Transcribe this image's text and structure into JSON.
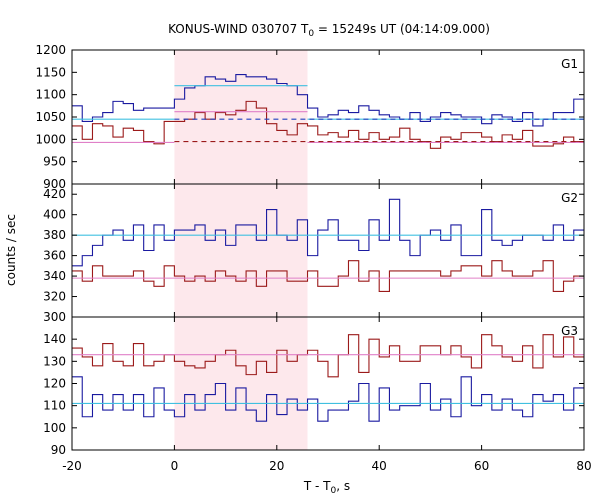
{
  "chart_data": {
    "type": "line",
    "style": "step",
    "title": {
      "main": "KONUS-WIND 030707 T",
      "sub": "0",
      "rest": " = 15249s UT (04:14:09.000)"
    },
    "xlabel": {
      "main": "T - T",
      "sub": "0",
      "rest": ", s"
    },
    "ylabel": "counts / sec",
    "xlim": [
      -20,
      80
    ],
    "x_ticks": [
      "-20",
      "0",
      "20",
      "40",
      "60",
      "80"
    ],
    "highlight_interval": {
      "x": [
        0,
        26
      ],
      "color": "#fde8ec"
    },
    "x_edges": [
      -20,
      -18,
      -16,
      -14,
      -12,
      -10,
      -8,
      -6,
      -4,
      -2,
      0,
      2,
      4,
      6,
      8,
      10,
      12,
      14,
      16,
      18,
      20,
      22,
      24,
      26,
      28,
      30,
      32,
      34,
      36,
      38,
      40,
      42,
      44,
      46,
      48,
      50,
      52,
      54,
      56,
      58,
      60,
      62,
      64,
      66,
      68,
      70,
      72,
      74,
      76,
      78,
      80
    ],
    "panels": [
      {
        "label": "G1",
        "ylim": [
          900,
          1200
        ],
        "y_ticks": [
          "900",
          "950",
          "1000",
          "1050",
          "1100",
          "1150",
          "1200"
        ],
        "series": [
          {
            "color": "#1a1aa0",
            "values": [
              1075,
              1040,
              1050,
              1060,
              1085,
              1080,
              1065,
              1070,
              1070,
              1070,
              1090,
              1115,
              1120,
              1140,
              1135,
              1130,
              1145,
              1140,
              1140,
              1135,
              1125,
              1120,
              1100,
              1070,
              1050,
              1055,
              1065,
              1060,
              1075,
              1065,
              1055,
              1050,
              1045,
              1060,
              1040,
              1050,
              1060,
              1055,
              1050,
              1050,
              1035,
              1055,
              1050,
              1040,
              1060,
              1030,
              1045,
              1060,
              1060,
              1090
            ]
          },
          {
            "color": "#9b1a1a",
            "values": [
              1030,
              1000,
              1035,
              1030,
              1005,
              1025,
              1020,
              995,
              990,
              1040,
              1040,
              1045,
              1060,
              1045,
              1060,
              1055,
              1065,
              1085,
              1070,
              1035,
              1020,
              1010,
              1035,
              1030,
              1010,
              1015,
              1005,
              1020,
              1000,
              1015,
              1000,
              1005,
              1025,
              1000,
              995,
              980,
              1005,
              1000,
              1015,
              1015,
              1005,
              995,
              1010,
              1000,
              1020,
              985,
              985,
              990,
              1005,
              995
            ]
          }
        ],
        "ref_lines": [
          {
            "color": "#40c0e0",
            "style": "solid",
            "y": 1045,
            "x": [
              -20,
              0
            ]
          },
          {
            "color": "#40c0e0",
            "style": "solid",
            "y": 1120,
            "x": [
              0,
              26
            ]
          },
          {
            "color": "#40c0e0",
            "style": "solid",
            "y": 1045,
            "x": [
              26,
              80
            ]
          },
          {
            "color": "#2040c0",
            "style": "dashed",
            "y": 1045,
            "x": [
              0,
              80
            ]
          },
          {
            "color": "#e080c8",
            "style": "solid",
            "y": 993,
            "x": [
              -20,
              0
            ]
          },
          {
            "color": "#e080c8",
            "style": "solid",
            "y": 1062,
            "x": [
              0,
              26
            ]
          },
          {
            "color": "#e080c8",
            "style": "solid",
            "y": 993,
            "x": [
              26,
              80
            ]
          },
          {
            "color": "#9b1a1a",
            "style": "dashed",
            "y": 995,
            "x": [
              0,
              80
            ]
          }
        ]
      },
      {
        "label": "G2",
        "ylim": [
          300,
          430
        ],
        "y_ticks": [
          "300",
          "320",
          "340",
          "360",
          "380",
          "400",
          "420"
        ],
        "series": [
          {
            "color": "#1a1aa0",
            "values": [
              350,
              360,
              370,
              380,
              385,
              375,
              390,
              365,
              390,
              375,
              385,
              385,
              390,
              375,
              385,
              370,
              390,
              390,
              375,
              405,
              380,
              375,
              395,
              360,
              385,
              395,
              375,
              375,
              365,
              395,
              375,
              415,
              375,
              360,
              380,
              385,
              375,
              390,
              360,
              360,
              405,
              375,
              370,
              375,
              380,
              380,
              375,
              390,
              375,
              385
            ]
          },
          {
            "color": "#9b1a1a",
            "values": [
              345,
              335,
              350,
              340,
              340,
              340,
              345,
              335,
              330,
              350,
              340,
              335,
              340,
              335,
              345,
              340,
              335,
              345,
              330,
              345,
              345,
              335,
              335,
              345,
              330,
              330,
              340,
              355,
              335,
              345,
              325,
              345,
              345,
              345,
              345,
              345,
              340,
              345,
              350,
              350,
              340,
              355,
              345,
              340,
              340,
              345,
              355,
              325,
              335,
              340
            ]
          }
        ],
        "ref_lines": [
          {
            "color": "#40c0e0",
            "style": "solid",
            "y": 380,
            "x": [
              -20,
              80
            ]
          },
          {
            "color": "#e080c8",
            "style": "solid",
            "y": 338,
            "x": [
              -20,
              80
            ]
          }
        ]
      },
      {
        "label": "G3",
        "ylim": [
          90,
          150
        ],
        "y_ticks": [
          "90",
          "100",
          "110",
          "120",
          "130",
          "140"
        ],
        "series": [
          {
            "color": "#1a1aa0",
            "values": [
              123,
              105,
              115,
              108,
              115,
              108,
              115,
              105,
              118,
              108,
              105,
              115,
              108,
              115,
              120,
              108,
              118,
              108,
              103,
              115,
              106,
              113,
              108,
              113,
              103,
              108,
              108,
              112,
              120,
              103,
              118,
              108,
              110,
              110,
              120,
              108,
              113,
              105,
              123,
              110,
              115,
              108,
              113,
              108,
              105,
              115,
              112,
              115,
              108,
              118
            ]
          },
          {
            "color": "#9b1a1a",
            "values": [
              136,
              132,
              128,
              138,
              130,
              128,
              138,
              128,
              130,
              133,
              130,
              128,
              127,
              130,
              133,
              135,
              128,
              124,
              130,
              125,
              135,
              130,
              133,
              135,
              130,
              123,
              133,
              142,
              125,
              140,
              132,
              137,
              130,
              130,
              137,
              137,
              133,
              137,
              132,
              127,
              142,
              137,
              132,
              130,
              137,
              127,
              142,
              132,
              141,
              132
            ]
          }
        ],
        "ref_lines": [
          {
            "color": "#40c0e0",
            "style": "solid",
            "y": 111,
            "x": [
              -20,
              80
            ]
          },
          {
            "color": "#e080c8",
            "style": "solid",
            "y": 133,
            "x": [
              -20,
              80
            ]
          }
        ]
      }
    ]
  }
}
